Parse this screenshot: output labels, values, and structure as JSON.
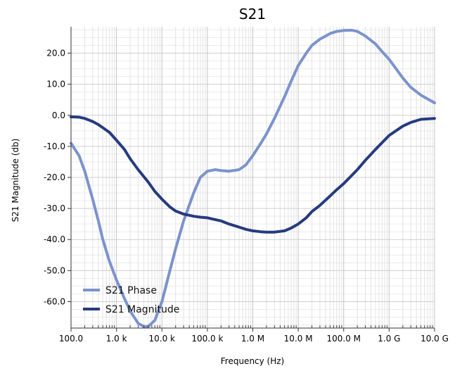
{
  "chart_data": {
    "type": "line",
    "title": "S21",
    "xlabel": "Frequency (Hz)",
    "ylabel": "S21 Magnitude (db)",
    "x_scale": "log",
    "xlim": [
      100,
      10000000000
    ],
    "ylim": [
      -68.5,
      28.5
    ],
    "x_ticks": [
      {
        "value": 100,
        "label": "100.0"
      },
      {
        "value": 1000,
        "label": "1.0 k"
      },
      {
        "value": 10000,
        "label": "10.0 k"
      },
      {
        "value": 100000,
        "label": "100.0 k"
      },
      {
        "value": 1000000,
        "label": "1.0 M"
      },
      {
        "value": 10000000,
        "label": "10.0 M"
      },
      {
        "value": 100000000,
        "label": "100.0 M"
      },
      {
        "value": 1000000000,
        "label": "1.0 G"
      },
      {
        "value": 10000000000,
        "label": "10.0 G"
      }
    ],
    "y_ticks": [
      {
        "value": 20,
        "label": "20.0"
      },
      {
        "value": 10,
        "label": "10.0"
      },
      {
        "value": 0,
        "label": "0.0"
      },
      {
        "value": -10,
        "label": "-10.0"
      },
      {
        "value": -20,
        "label": "-20.0"
      },
      {
        "value": -30,
        "label": "-30.0"
      },
      {
        "value": -40,
        "label": "-40.0"
      },
      {
        "value": -50,
        "label": "-50.0"
      },
      {
        "value": -60,
        "label": "-60.0"
      }
    ],
    "grid": true,
    "legend_position": "bottom-left",
    "series": [
      {
        "name": "S21 Phase",
        "color": "#7b93cc",
        "x": [
          100,
          150,
          200,
          300,
          400,
          500,
          700,
          1000,
          1500,
          2000,
          3000,
          4000,
          5000,
          7000,
          10000,
          15000,
          20000,
          30000,
          50000,
          70000,
          100000,
          150000,
          200000,
          300000,
          500000,
          700000,
          1000000,
          1500000,
          2000000,
          3000000,
          5000000,
          7000000,
          10000000,
          15000000,
          20000000,
          30000000,
          50000000,
          70000000,
          100000000,
          150000000,
          200000000,
          300000000,
          500000000,
          700000000,
          1000000000,
          1500000000,
          2000000000,
          3000000000,
          5000000000,
          10000000000
        ],
        "y": [
          -9,
          -13,
          -18,
          -27,
          -34,
          -40,
          -47,
          -53,
          -59,
          -63,
          -67,
          -68,
          -68,
          -66,
          -60,
          -50,
          -43,
          -34,
          -25,
          -20,
          -18,
          -17.5,
          -17.8,
          -18,
          -17.5,
          -16,
          -13,
          -9,
          -6,
          -1,
          6,
          11,
          16,
          20,
          22.5,
          24.5,
          26.3,
          27,
          27.3,
          27.4,
          27,
          25.5,
          23,
          20.5,
          18,
          14.5,
          12,
          9,
          6.5,
          4
        ]
      },
      {
        "name": "S21 Magnitude",
        "color": "#263b7e",
        "x": [
          100,
          150,
          200,
          300,
          400,
          500,
          700,
          1000,
          1500,
          2000,
          3000,
          5000,
          7000,
          10000,
          15000,
          20000,
          30000,
          50000,
          70000,
          100000,
          200000,
          300000,
          500000,
          700000,
          1000000,
          1500000,
          2000000,
          3000000,
          5000000,
          7000000,
          10000000,
          15000000,
          20000000,
          30000000,
          50000000,
          70000000,
          100000000,
          200000000,
          300000000,
          500000000,
          1000000000,
          2000000000,
          3000000000,
          5000000000,
          10000000000
        ],
        "y": [
          -0.5,
          -0.6,
          -1,
          -2,
          -3,
          -4,
          -5.5,
          -8,
          -11,
          -14,
          -17.5,
          -21.5,
          -24.5,
          -27,
          -29.5,
          -30.8,
          -31.8,
          -32.5,
          -32.8,
          -33,
          -34,
          -35,
          -36,
          -36.7,
          -37.2,
          -37.5,
          -37.6,
          -37.6,
          -37.2,
          -36.3,
          -35,
          -33,
          -31,
          -29,
          -26,
          -24,
          -22,
          -17.5,
          -14.5,
          -11,
          -6.5,
          -3.5,
          -2.3,
          -1.3,
          -1
        ]
      }
    ]
  }
}
